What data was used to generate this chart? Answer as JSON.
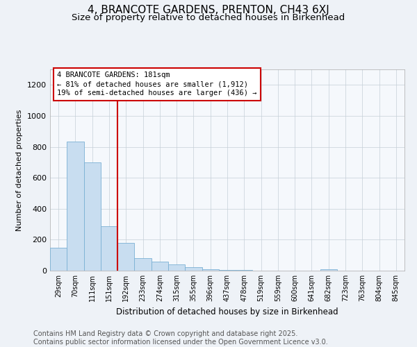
{
  "title": "4, BRANCOTE GARDENS, PRENTON, CH43 6XJ",
  "subtitle": "Size of property relative to detached houses in Birkenhead",
  "xlabel": "Distribution of detached houses by size in Birkenhead",
  "ylabel": "Number of detached properties",
  "categories": [
    "29sqm",
    "70sqm",
    "111sqm",
    "151sqm",
    "192sqm",
    "233sqm",
    "274sqm",
    "315sqm",
    "355sqm",
    "396sqm",
    "437sqm",
    "478sqm",
    "519sqm",
    "559sqm",
    "600sqm",
    "641sqm",
    "682sqm",
    "723sqm",
    "763sqm",
    "804sqm",
    "845sqm"
  ],
  "values": [
    150,
    835,
    700,
    285,
    180,
    82,
    57,
    42,
    22,
    8,
    4,
    3,
    2,
    2,
    1,
    1,
    7,
    0,
    0,
    0,
    0
  ],
  "bar_color": "#c8ddf0",
  "bar_edge_color": "#7ab0d4",
  "vline_color": "#cc0000",
  "annotation_text": "4 BRANCOTE GARDENS: 181sqm\n← 81% of detached houses are smaller (1,912)\n19% of semi-detached houses are larger (436) →",
  "annotation_box_color": "#ffffff",
  "annotation_box_edge": "#cc0000",
  "ylim": [
    0,
    1300
  ],
  "yticks": [
    0,
    200,
    400,
    600,
    800,
    1000,
    1200
  ],
  "footer": "Contains HM Land Registry data © Crown copyright and database right 2025.\nContains public sector information licensed under the Open Government Licence v3.0.",
  "bg_color": "#eef2f7",
  "plot_bg_color": "#f5f8fc",
  "title_fontsize": 11,
  "subtitle_fontsize": 9.5,
  "footer_fontsize": 7
}
